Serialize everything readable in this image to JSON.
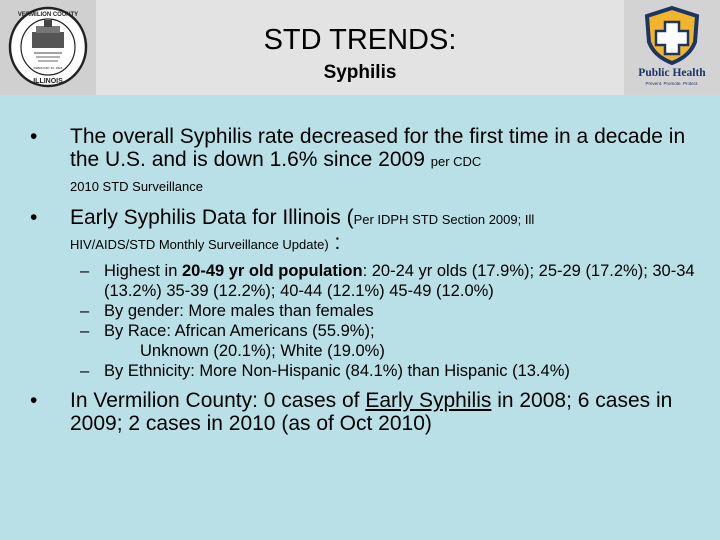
{
  "header": {
    "title": "STD TRENDS:",
    "subtitle": "Syphilis",
    "left_logo": {
      "arc_top": "VERMILION COUNTY",
      "arc_bottom": "ILLINOIS",
      "small_text": "FEBRUARY 26, 1826"
    },
    "right_logo": {
      "name": "Public Health",
      "tagline": "Prevent. Promote. Protect."
    }
  },
  "bullets": {
    "b1": {
      "main": "The overall Syphilis rate decreased for the first time in a decade in the U.S. and is down 1.6% since 2009 ",
      "src1": "per CDC",
      "src2": "2010 STD Surveillance"
    },
    "b2": {
      "main": "Early Syphilis Data for Illinois (",
      "src1": "Per IDPH STD Section 2009; Ill",
      "src2": "HIV/AIDS/STD Monthly Surveillance Update)",
      "colon": " :",
      "sub1_a": "Highest in ",
      "sub1_b": "20-49 yr old population",
      "sub1_c": ":  20-24 yr olds (17.9%); 25-29 (17.2%); 30-34 (13.2%) 35-39 (12.2%); 40-44 (12.1%) 45-49 (12.0%)",
      "sub2": "By gender:  More males than females",
      "sub3_a": "By Race:  African Americans (55.9%);",
      "sub3_b": "Unknown (20.1%);   White (19.0%)",
      "sub4": "By Ethnicity: More Non-Hispanic (84.1%) than Hispanic (13.4%)"
    },
    "b3": {
      "a": "In Vermilion County: 0 cases of ",
      "b": "Early Syphilis",
      "c": " in 2008; 6 cases in 2009; 2 cases in 2010 (as of Oct 2010)"
    }
  }
}
